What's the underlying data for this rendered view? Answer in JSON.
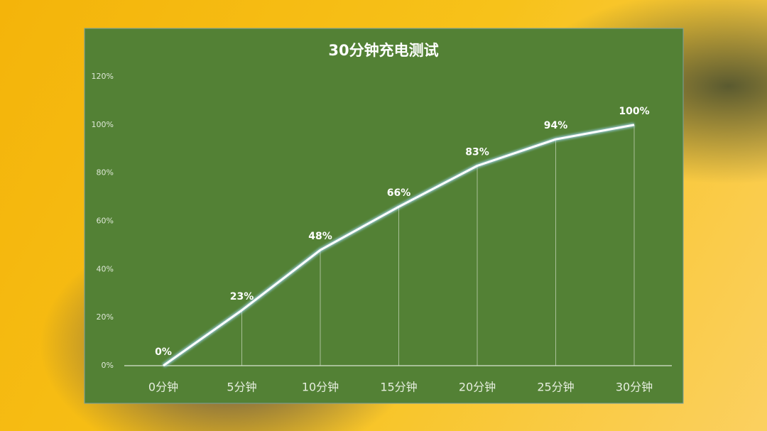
{
  "chart_data": {
    "type": "line",
    "title": "30分钟充电测试",
    "categories": [
      "0分钟",
      "5分钟",
      "10分钟",
      "15分钟",
      "20分钟",
      "25分钟",
      "30分钟"
    ],
    "values": [
      0,
      23,
      48,
      66,
      83,
      94,
      100
    ],
    "value_labels": [
      "0%",
      "23%",
      "48%",
      "66%",
      "83%",
      "94%",
      "100%"
    ],
    "color": "#ffffff",
    "ylim": [
      0,
      120
    ],
    "yticks": [
      {
        "value": 0,
        "label": "0%"
      },
      {
        "value": 20,
        "label": "20%"
      },
      {
        "value": 40,
        "label": "40%"
      },
      {
        "value": 60,
        "label": "60%"
      },
      {
        "value": 80,
        "label": "80%"
      },
      {
        "value": 100,
        "label": "100%"
      },
      {
        "value": 120,
        "label": "120%"
      }
    ],
    "grid": false
  }
}
